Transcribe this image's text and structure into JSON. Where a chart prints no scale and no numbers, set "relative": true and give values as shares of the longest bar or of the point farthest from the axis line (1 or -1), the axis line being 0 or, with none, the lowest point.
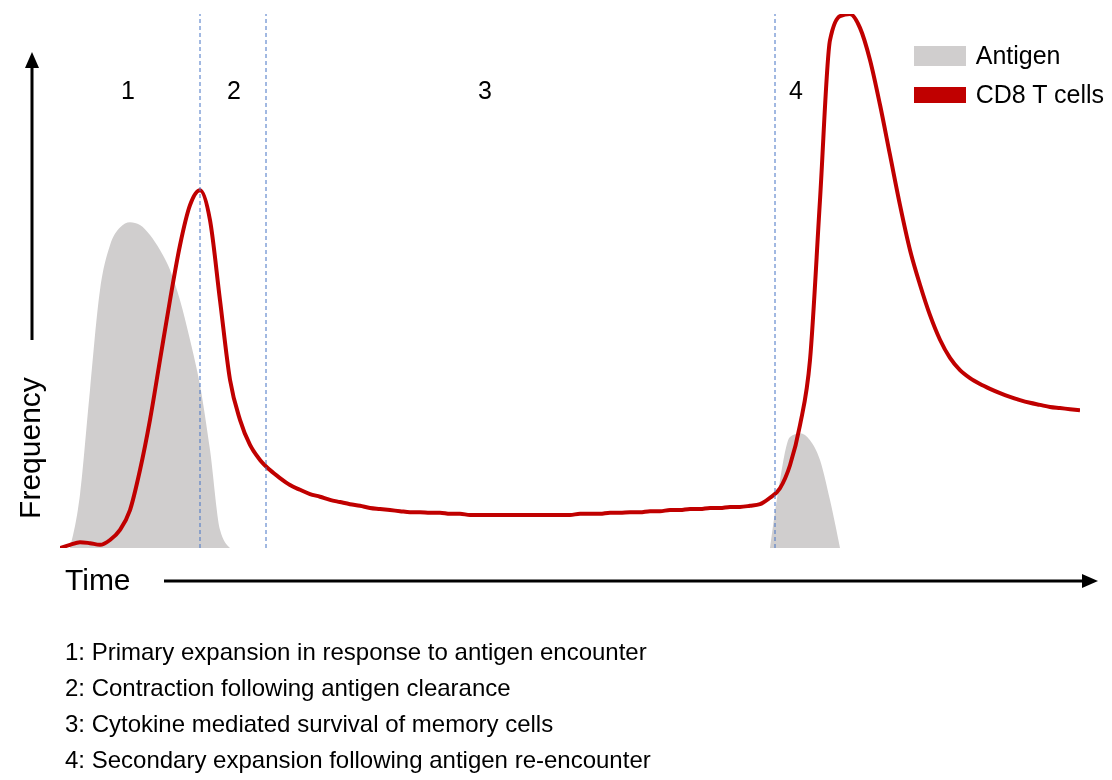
{
  "chart_data": {
    "type": "line",
    "relative": true,
    "xlabel": "Time",
    "ylabel": "Frequency",
    "legend": "top right",
    "categories": [
      null,
      null,
      null,
      null,
      null,
      null,
      null,
      null,
      null,
      null,
      null,
      null,
      null,
      null,
      null,
      null,
      null,
      null,
      null,
      null,
      null,
      null,
      null,
      null,
      null,
      null,
      null,
      null,
      null,
      null,
      null,
      null,
      null,
      null,
      null,
      null,
      null,
      null,
      null,
      null,
      null,
      null,
      null,
      null,
      null,
      null,
      null,
      null,
      null,
      null,
      null,
      null,
      null,
      null,
      null,
      null,
      null,
      null,
      null,
      null,
      null,
      null,
      null,
      null,
      null,
      null,
      null,
      null,
      null,
      null,
      null,
      null,
      null,
      null,
      null,
      null,
      null,
      null,
      null,
      null,
      null,
      null,
      null,
      null,
      null,
      null,
      null,
      null,
      null,
      null,
      null,
      null,
      null,
      null,
      null,
      null,
      null,
      null,
      null,
      null,
      null,
      null,
      null
    ],
    "series": [
      {
        "name": "Antigen",
        "type": "area",
        "color": "#d0cece",
        "values": [
          null,
          0,
          0.1,
          0.296,
          0.483,
          0.567,
          0.6,
          0.61,
          0.605,
          0.586,
          0.558,
          0.521,
          0.464,
          0.39,
          0.305,
          0.184,
          0.034,
          0,
          null,
          null,
          null,
          null,
          null,
          null,
          null,
          null,
          null,
          null,
          null,
          null,
          null,
          null,
          null,
          null,
          null,
          null,
          null,
          null,
          null,
          null,
          null,
          null,
          null,
          null,
          null,
          null,
          null,
          null,
          null,
          null,
          null,
          null,
          null,
          null,
          null,
          null,
          null,
          null,
          null,
          null,
          null,
          null,
          null,
          null,
          null,
          null,
          null,
          null,
          null,
          null,
          null,
          0,
          0.127,
          0.208,
          0.215,
          0.202,
          0.165,
          0.09,
          0,
          null,
          null,
          null,
          null,
          null,
          null,
          null,
          null,
          null,
          null,
          null,
          null,
          null,
          null,
          null,
          null,
          null,
          null,
          null,
          null,
          null,
          null,
          null,
          null
        ]
      },
      {
        "name": "CD8 T cells",
        "type": "line",
        "color": "#c00000",
        "values": [
          0,
          0.006,
          0.011,
          0.009,
          0.006,
          0.015,
          0.034,
          0.071,
          0.146,
          0.24,
          0.352,
          0.464,
          0.567,
          0.642,
          0.67,
          0.614,
          0.464,
          0.315,
          0.24,
          0.193,
          0.165,
          0.146,
          0.131,
          0.118,
          0.109,
          0.101,
          0.096,
          0.09,
          0.086,
          0.082,
          0.079,
          0.075,
          0.073,
          0.071,
          0.069,
          0.067,
          0.067,
          0.066,
          0.066,
          0.064,
          0.064,
          0.062,
          0.062,
          0.062,
          0.062,
          0.062,
          0.062,
          0.062,
          0.062,
          0.062,
          0.062,
          0.062,
          0.064,
          0.064,
          0.064,
          0.066,
          0.066,
          0.067,
          0.067,
          0.069,
          0.069,
          0.071,
          0.071,
          0.073,
          0.073,
          0.075,
          0.075,
          0.077,
          0.077,
          0.079,
          0.082,
          0.094,
          0.112,
          0.155,
          0.23,
          0.352,
          0.652,
          0.951,
          0.996,
          1,
          0.974,
          0.914,
          0.83,
          0.736,
          0.642,
          0.558,
          0.493,
          0.436,
          0.39,
          0.356,
          0.333,
          0.318,
          0.307,
          0.298,
          0.29,
          0.283,
          0.277,
          0.272,
          0.268,
          0.264,
          0.262,
          0.26,
          0.258
        ]
      }
    ],
    "annotations": [
      "1",
      "2",
      "3",
      "4",
      "1: Primary expansion in response to antigen encounter",
      "2: Contraction following antigen clearance",
      "3: Cytokine mediated survival of memory cells",
      "4: Secondary expansion following antigen re-encounter"
    ]
  }
}
